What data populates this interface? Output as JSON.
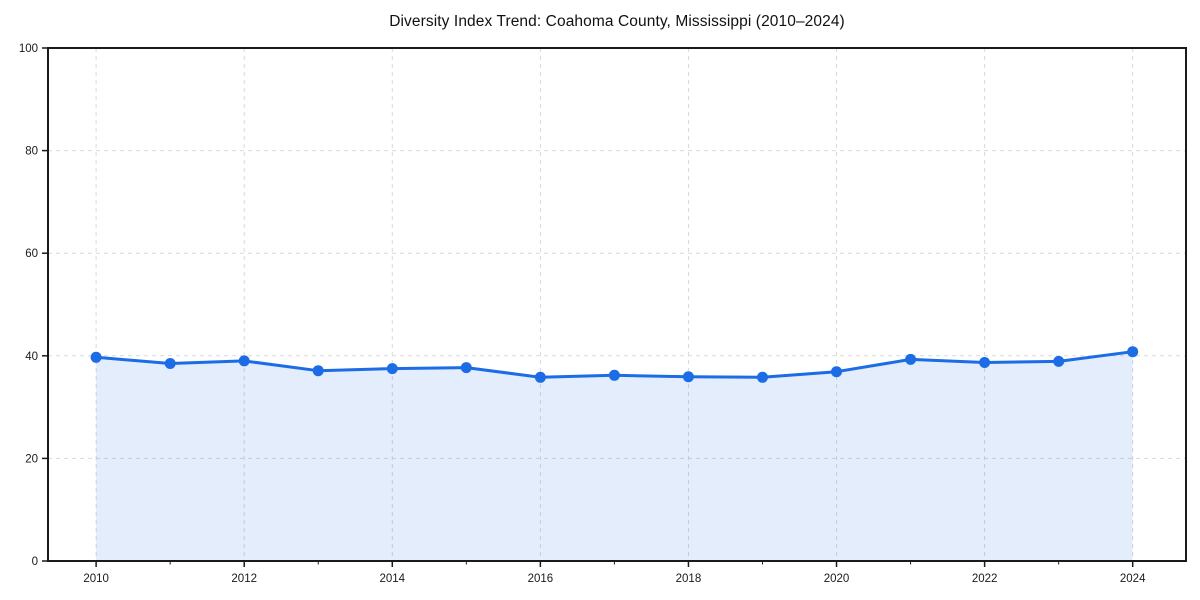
{
  "page": {
    "background_color": "#ffffff"
  },
  "chart_data": {
    "type": "area",
    "title": "Diversity Index Trend: Coahoma County, Mississippi (2010–2024)",
    "xlabel": "",
    "ylabel": "",
    "x": [
      2010,
      2011,
      2012,
      2013,
      2014,
      2015,
      2016,
      2017,
      2018,
      2019,
      2020,
      2021,
      2022,
      2023,
      2024
    ],
    "series": [
      {
        "name": "Diversity Index",
        "values": [
          39.7,
          38.5,
          39.0,
          37.1,
          37.5,
          37.7,
          35.8,
          36.2,
          35.9,
          35.8,
          36.9,
          39.3,
          38.7,
          38.9,
          40.8
        ]
      }
    ],
    "xlim": [
      2009.35,
      2024.72
    ],
    "ylim": [
      0,
      100
    ],
    "xticks": [
      2010,
      2012,
      2014,
      2016,
      2018,
      2020,
      2022,
      2024
    ],
    "yticks": [
      0,
      20,
      40,
      60,
      80,
      100
    ],
    "minor_xticks_every_year": true,
    "grid": {
      "on": true,
      "style": "dashed",
      "color": "#d9d9d9"
    },
    "legend": "none",
    "line_color": "#1b6ce5",
    "marker": "circle",
    "fill_color": "#1b6ce5",
    "fill_opacity": 0.12,
    "spine_color": "#1a1a1a",
    "tick_label_color": "#1a1a1a"
  }
}
